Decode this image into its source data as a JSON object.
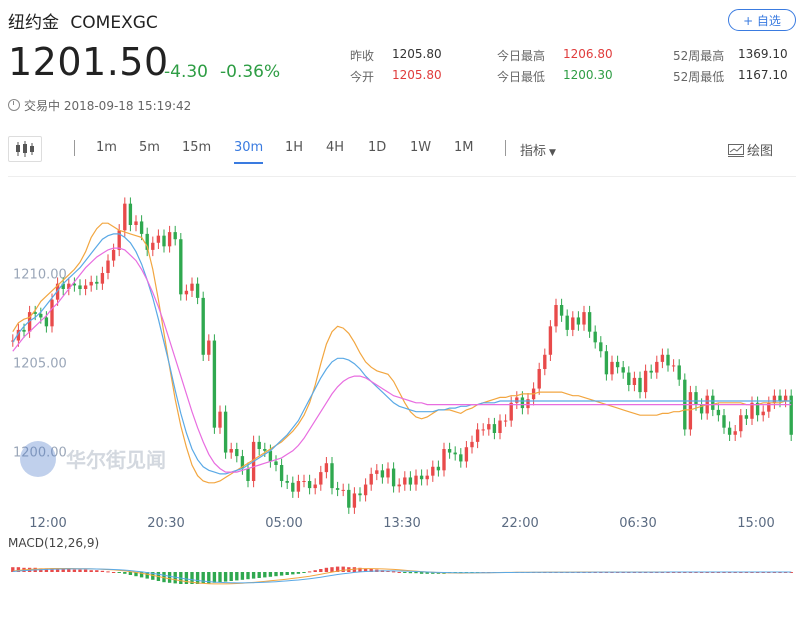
{
  "header": {
    "name": "纽约金",
    "symbol": "COMEXGC",
    "follow_label": "+ 自选"
  },
  "quote": {
    "price": "1201.50",
    "change": "-4.30",
    "change_pct": "-0.36%",
    "status": "交易中 2018-09-18 15:19:42"
  },
  "stats": {
    "prev_close_label": "昨收",
    "prev_close": "1205.80",
    "open_label": "今开",
    "open": "1205.80",
    "high_label": "今日最高",
    "high": "1206.80",
    "low_label": "今日最低",
    "low": "1200.30",
    "wk52_high_label": "52周最高",
    "wk52_high": "1369.10",
    "wk52_low_label": "52周最低",
    "wk52_low": "1167.10"
  },
  "toolbar": {
    "tabs": [
      "1m",
      "5m",
      "15m",
      "30m",
      "1H",
      "4H",
      "1D",
      "1W",
      "1M"
    ],
    "active_tab": "30m",
    "indicator_label": "指标",
    "draw_label": "绘图"
  },
  "colors": {
    "up": "#e84a4a",
    "down": "#2fa84f",
    "ma_short": "#f2a640",
    "ma_mid": "#5aa9e6",
    "ma_long": "#e86de0",
    "accent": "#3a7be0"
  },
  "watermark": "华尔街见闻",
  "chart_data": {
    "type": "candlestick",
    "ylim": [
      1198,
      1216
    ],
    "y_ticks": [
      1210.0,
      1205.0,
      1200.0
    ],
    "x_ticks": [
      "12:00",
      "20:30",
      "05:00",
      "13:30",
      "22:00",
      "06:30",
      "15:00"
    ],
    "main_series": [
      {
        "name": "close",
        "values": [
          1206.8,
          1207.4,
          1207.3,
          1208.4,
          1208.3,
          1208.1,
          1207.6,
          1209.1,
          1210.0,
          1209.7,
          1210.0,
          1209.9,
          1209.7,
          1209.9,
          1210.1,
          1210.0,
          1210.6,
          1211.3,
          1211.9,
          1213.0,
          1214.5,
          1213.3,
          1213.5,
          1212.8,
          1211.9,
          1212.3,
          1212.7,
          1212.1,
          1212.9,
          1212.5,
          1209.4,
          1209.6,
          1210.0,
          1209.2,
          1206.0,
          1206.8,
          1201.9,
          1202.8,
          1200.5,
          1200.7,
          1200.3,
          1199.6,
          1198.9,
          1201.1,
          1200.7,
          1200.6,
          1200.0,
          1199.8,
          1198.9,
          1198.8,
          1198.3,
          1198.9,
          1198.9,
          1198.5,
          1198.7,
          1199.4,
          1199.9,
          1198.5,
          1198.4,
          1198.4,
          1197.4,
          1198.2,
          1198.1,
          1198.7,
          1199.3,
          1199.5,
          1199.1,
          1199.6,
          1198.6,
          1198.7,
          1199.1,
          1198.7,
          1199.2,
          1199.0,
          1199.2,
          1199.7,
          1199.5,
          1200.7,
          1200.5,
          1200.4,
          1200.0,
          1200.8,
          1201.1,
          1201.8,
          1201.8,
          1202.1,
          1201.6,
          1202.3,
          1202.3,
          1203.3,
          1203.6,
          1203.0,
          1203.5,
          1204.1,
          1205.2,
          1206.0,
          1207.6,
          1208.8,
          1208.2,
          1207.4,
          1208.1,
          1207.7,
          1208.4,
          1207.3,
          1206.7,
          1206.2,
          1204.9,
          1205.6,
          1205.3,
          1205.0,
          1204.3,
          1204.7,
          1203.9,
          1205.1,
          1205.0,
          1205.6,
          1206.0,
          1205.4,
          1205.4,
          1204.6,
          1201.8,
          1203.9,
          1203.2,
          1202.7,
          1203.7,
          1202.9,
          1202.6,
          1201.9,
          1201.5,
          1201.7,
          1202.6,
          1202.4,
          1203.3,
          1202.6,
          1202.8,
          1203.3,
          1203.7,
          1203.4,
          1203.7,
          1201.5
        ]
      },
      {
        "name": "MA short",
        "values": [
          1207.3,
          1207.8,
          1208.0,
          1208.1,
          1208.5,
          1209.0,
          1209.3,
          1209.6,
          1209.9,
          1210.2,
          1210.5,
          1210.8,
          1211.2,
          1211.8,
          1212.6,
          1213.1,
          1213.4,
          1213.4,
          1213.2,
          1213.0,
          1212.9,
          1212.8,
          1212.7,
          1212.6,
          1212.1,
          1210.8,
          1209.1,
          1207.2,
          1205.3,
          1203.5,
          1202.0,
          1200.8,
          1199.8,
          1199.2,
          1198.9,
          1198.8,
          1198.8,
          1198.9,
          1199.1,
          1199.3,
          1199.5,
          1199.7,
          1199.9,
          1200.1,
          1200.3,
          1200.5,
          1200.7,
          1200.9,
          1201.1,
          1201.4,
          1201.7,
          1202.1,
          1202.6,
          1203.3,
          1204.3,
          1205.5,
          1206.6,
          1207.3,
          1207.6,
          1207.5,
          1207.2,
          1206.7,
          1206.1,
          1205.6,
          1205.3,
          1205.1,
          1205.0,
          1204.9,
          1204.5,
          1203.9,
          1203.3,
          1202.8,
          1202.5,
          1202.4,
          1202.5,
          1202.7,
          1202.9,
          1202.9,
          1202.9,
          1202.8,
          1202.7,
          1202.9,
          1203.0,
          1203.2,
          1203.3,
          1203.4,
          1203.5,
          1203.6,
          1203.6,
          1203.7,
          1203.7,
          1203.8,
          1203.8,
          1203.8,
          1203.9,
          1203.9,
          1203.9,
          1203.9,
          1203.9,
          1203.8,
          1203.7,
          1203.7,
          1203.6,
          1203.5,
          1203.4,
          1203.3,
          1203.2,
          1203.1,
          1203.0,
          1202.9,
          1202.8,
          1202.7,
          1202.6,
          1202.6,
          1202.6,
          1202.6,
          1202.7,
          1202.7,
          1202.8,
          1202.8,
          1202.9,
          1202.9,
          1203.0,
          1203.1,
          1203.2,
          1203.2,
          1203.3,
          1203.3,
          1203.3,
          1203.3,
          1203.3,
          1203.2,
          1203.2,
          1203.2,
          1203.3,
          1203.3,
          1203.3,
          1203.3,
          1203.4,
          1203.4
        ]
      },
      {
        "name": "MA mid",
        "values": [
          1206.7,
          1207.2,
          1207.6,
          1207.9,
          1208.1,
          1208.4,
          1208.8,
          1209.2,
          1209.6,
          1210.0,
          1210.3,
          1210.6,
          1210.9,
          1211.3,
          1211.7,
          1212.1,
          1212.5,
          1212.7,
          1212.8,
          1212.8,
          1212.6,
          1212.3,
          1211.8,
          1211.1,
          1210.2,
          1209.2,
          1208.0,
          1206.7,
          1205.4,
          1204.0,
          1202.7,
          1201.6,
          1200.7,
          1200.1,
          1199.7,
          1199.5,
          1199.4,
          1199.3,
          1199.3,
          1199.4,
          1199.5,
          1199.6,
          1199.8,
          1200.0,
          1200.2,
          1200.4,
          1200.6,
          1200.9,
          1201.2,
          1201.5,
          1201.9,
          1202.3,
          1202.9,
          1203.5,
          1204.1,
          1204.7,
          1205.2,
          1205.6,
          1205.8,
          1205.8,
          1205.7,
          1205.5,
          1205.2,
          1204.8,
          1204.5,
          1204.2,
          1203.9,
          1203.6,
          1203.3,
          1203.1,
          1203.0,
          1202.9,
          1202.8,
          1202.8,
          1202.8,
          1202.8,
          1202.9,
          1202.9,
          1203.0,
          1203.0,
          1203.1,
          1203.1,
          1203.2,
          1203.2,
          1203.3,
          1203.3,
          1203.3,
          1203.4,
          1203.4,
          1203.4,
          1203.4,
          1203.4,
          1203.4,
          1203.4,
          1203.4,
          1203.4,
          1203.4,
          1203.4,
          1203.4,
          1203.4,
          1203.4,
          1203.4,
          1203.4,
          1203.4,
          1203.4,
          1203.4,
          1203.4,
          1203.4,
          1203.4,
          1203.4,
          1203.4,
          1203.4,
          1203.4,
          1203.4,
          1203.4,
          1203.4,
          1203.4,
          1203.4,
          1203.4,
          1203.4,
          1203.4,
          1203.4,
          1203.4,
          1203.4,
          1203.4,
          1203.4,
          1203.4,
          1203.4,
          1203.4,
          1203.4,
          1203.4,
          1203.4,
          1203.4,
          1203.4,
          1203.4,
          1203.4,
          1203.4,
          1203.4,
          1203.4,
          1203.4
        ]
      },
      {
        "name": "MA long",
        "values": [
          1206.2,
          1206.6,
          1207.0,
          1207.3,
          1207.6,
          1207.9,
          1208.2,
          1208.6,
          1208.9,
          1209.3,
          1209.7,
          1210.1,
          1210.5,
          1210.9,
          1211.2,
          1211.5,
          1211.7,
          1211.9,
          1212.0,
          1212.0,
          1211.9,
          1211.6,
          1211.3,
          1210.8,
          1210.2,
          1209.5,
          1208.7,
          1207.8,
          1206.8,
          1205.8,
          1204.8,
          1203.8,
          1202.8,
          1201.9,
          1201.1,
          1200.4,
          1199.9,
          1199.6,
          1199.4,
          1199.4,
          1199.4,
          1199.5,
          1199.6,
          1199.7,
          1199.8,
          1199.9,
          1200.0,
          1200.1,
          1200.2,
          1200.4,
          1200.6,
          1200.9,
          1201.3,
          1201.8,
          1202.3,
          1202.8,
          1203.3,
          1203.8,
          1204.2,
          1204.5,
          1204.7,
          1204.8,
          1204.8,
          1204.7,
          1204.5,
          1204.3,
          1204.1,
          1203.9,
          1203.7,
          1203.6,
          1203.5,
          1203.4,
          1203.3,
          1203.3,
          1203.2,
          1203.2,
          1203.2,
          1203.2,
          1203.2,
          1203.2,
          1203.2,
          1203.2,
          1203.2,
          1203.2,
          1203.2,
          1203.2,
          1203.2,
          1203.2,
          1203.2,
          1203.2,
          1203.2,
          1203.2,
          1203.2,
          1203.2,
          1203.2,
          1203.2,
          1203.2,
          1203.2,
          1203.2,
          1203.2,
          1203.2,
          1203.2,
          1203.2,
          1203.2,
          1203.2,
          1203.2,
          1203.2,
          1203.2,
          1203.2,
          1203.2,
          1203.2,
          1203.2,
          1203.2,
          1203.2,
          1203.2,
          1203.2,
          1203.2,
          1203.2,
          1203.2,
          1203.2,
          1203.2,
          1203.2,
          1203.2,
          1203.2,
          1203.2,
          1203.2,
          1203.2,
          1203.2,
          1203.2,
          1203.2,
          1203.2,
          1203.2,
          1203.2,
          1203.2,
          1203.2,
          1203.2,
          1203.2,
          1203.2,
          1203.2,
          1203.2
        ]
      }
    ],
    "macd": {
      "label": "MACD(12,26,9)",
      "histogram": [
        0.8,
        0.8,
        0.7,
        0.7,
        0.7,
        0.6,
        0.6,
        0.6,
        0.5,
        0.5,
        0.5,
        0.4,
        0.4,
        0.4,
        0.3,
        0.3,
        0.2,
        0.1,
        0.0,
        -0.1,
        -0.3,
        -0.5,
        -0.7,
        -0.9,
        -1.1,
        -1.3,
        -1.5,
        -1.7,
        -1.8,
        -1.9,
        -2.0,
        -2.0,
        -2.0,
        -2.0,
        -1.9,
        -1.9,
        -1.8,
        -1.7,
        -1.6,
        -1.5,
        -1.4,
        -1.3,
        -1.2,
        -1.1,
        -1.0,
        -0.9,
        -0.8,
        -0.7,
        -0.6,
        -0.5,
        -0.4,
        -0.3,
        -0.1,
        0.1,
        0.3,
        0.5,
        0.7,
        0.8,
        0.9,
        0.9,
        0.8,
        0.8,
        0.7,
        0.6,
        0.5,
        0.4,
        0.3,
        0.2,
        0.1,
        0.0,
        -0.1,
        -0.2,
        -0.2,
        -0.3,
        -0.3,
        -0.3,
        -0.3,
        -0.3,
        -0.2,
        -0.2,
        -0.2,
        -0.1,
        -0.1,
        -0.1,
        0.0,
        0.0,
        0.0,
        0.0,
        0.0,
        0.0,
        0.0,
        0.0,
        0.0,
        0.0,
        0.0,
        0.0,
        0.0,
        0.0,
        0.0,
        0.0,
        0.0,
        0.0,
        0.0,
        0.0,
        0.0,
        0.0,
        0.0,
        0.0,
        0.0,
        0.0,
        0.0,
        0.0,
        0.0,
        0.0,
        0.0,
        0.0,
        0.0,
        0.0,
        0.0,
        0.0,
        0.0,
        0.0,
        0.0,
        0.0,
        0.0,
        0.0,
        0.0,
        0.0,
        0.0,
        0.0,
        0.0,
        0.0,
        0.0,
        0.0,
        0.0,
        0.0,
        0.0,
        0.0,
        0.0,
        0.0
      ]
    }
  }
}
